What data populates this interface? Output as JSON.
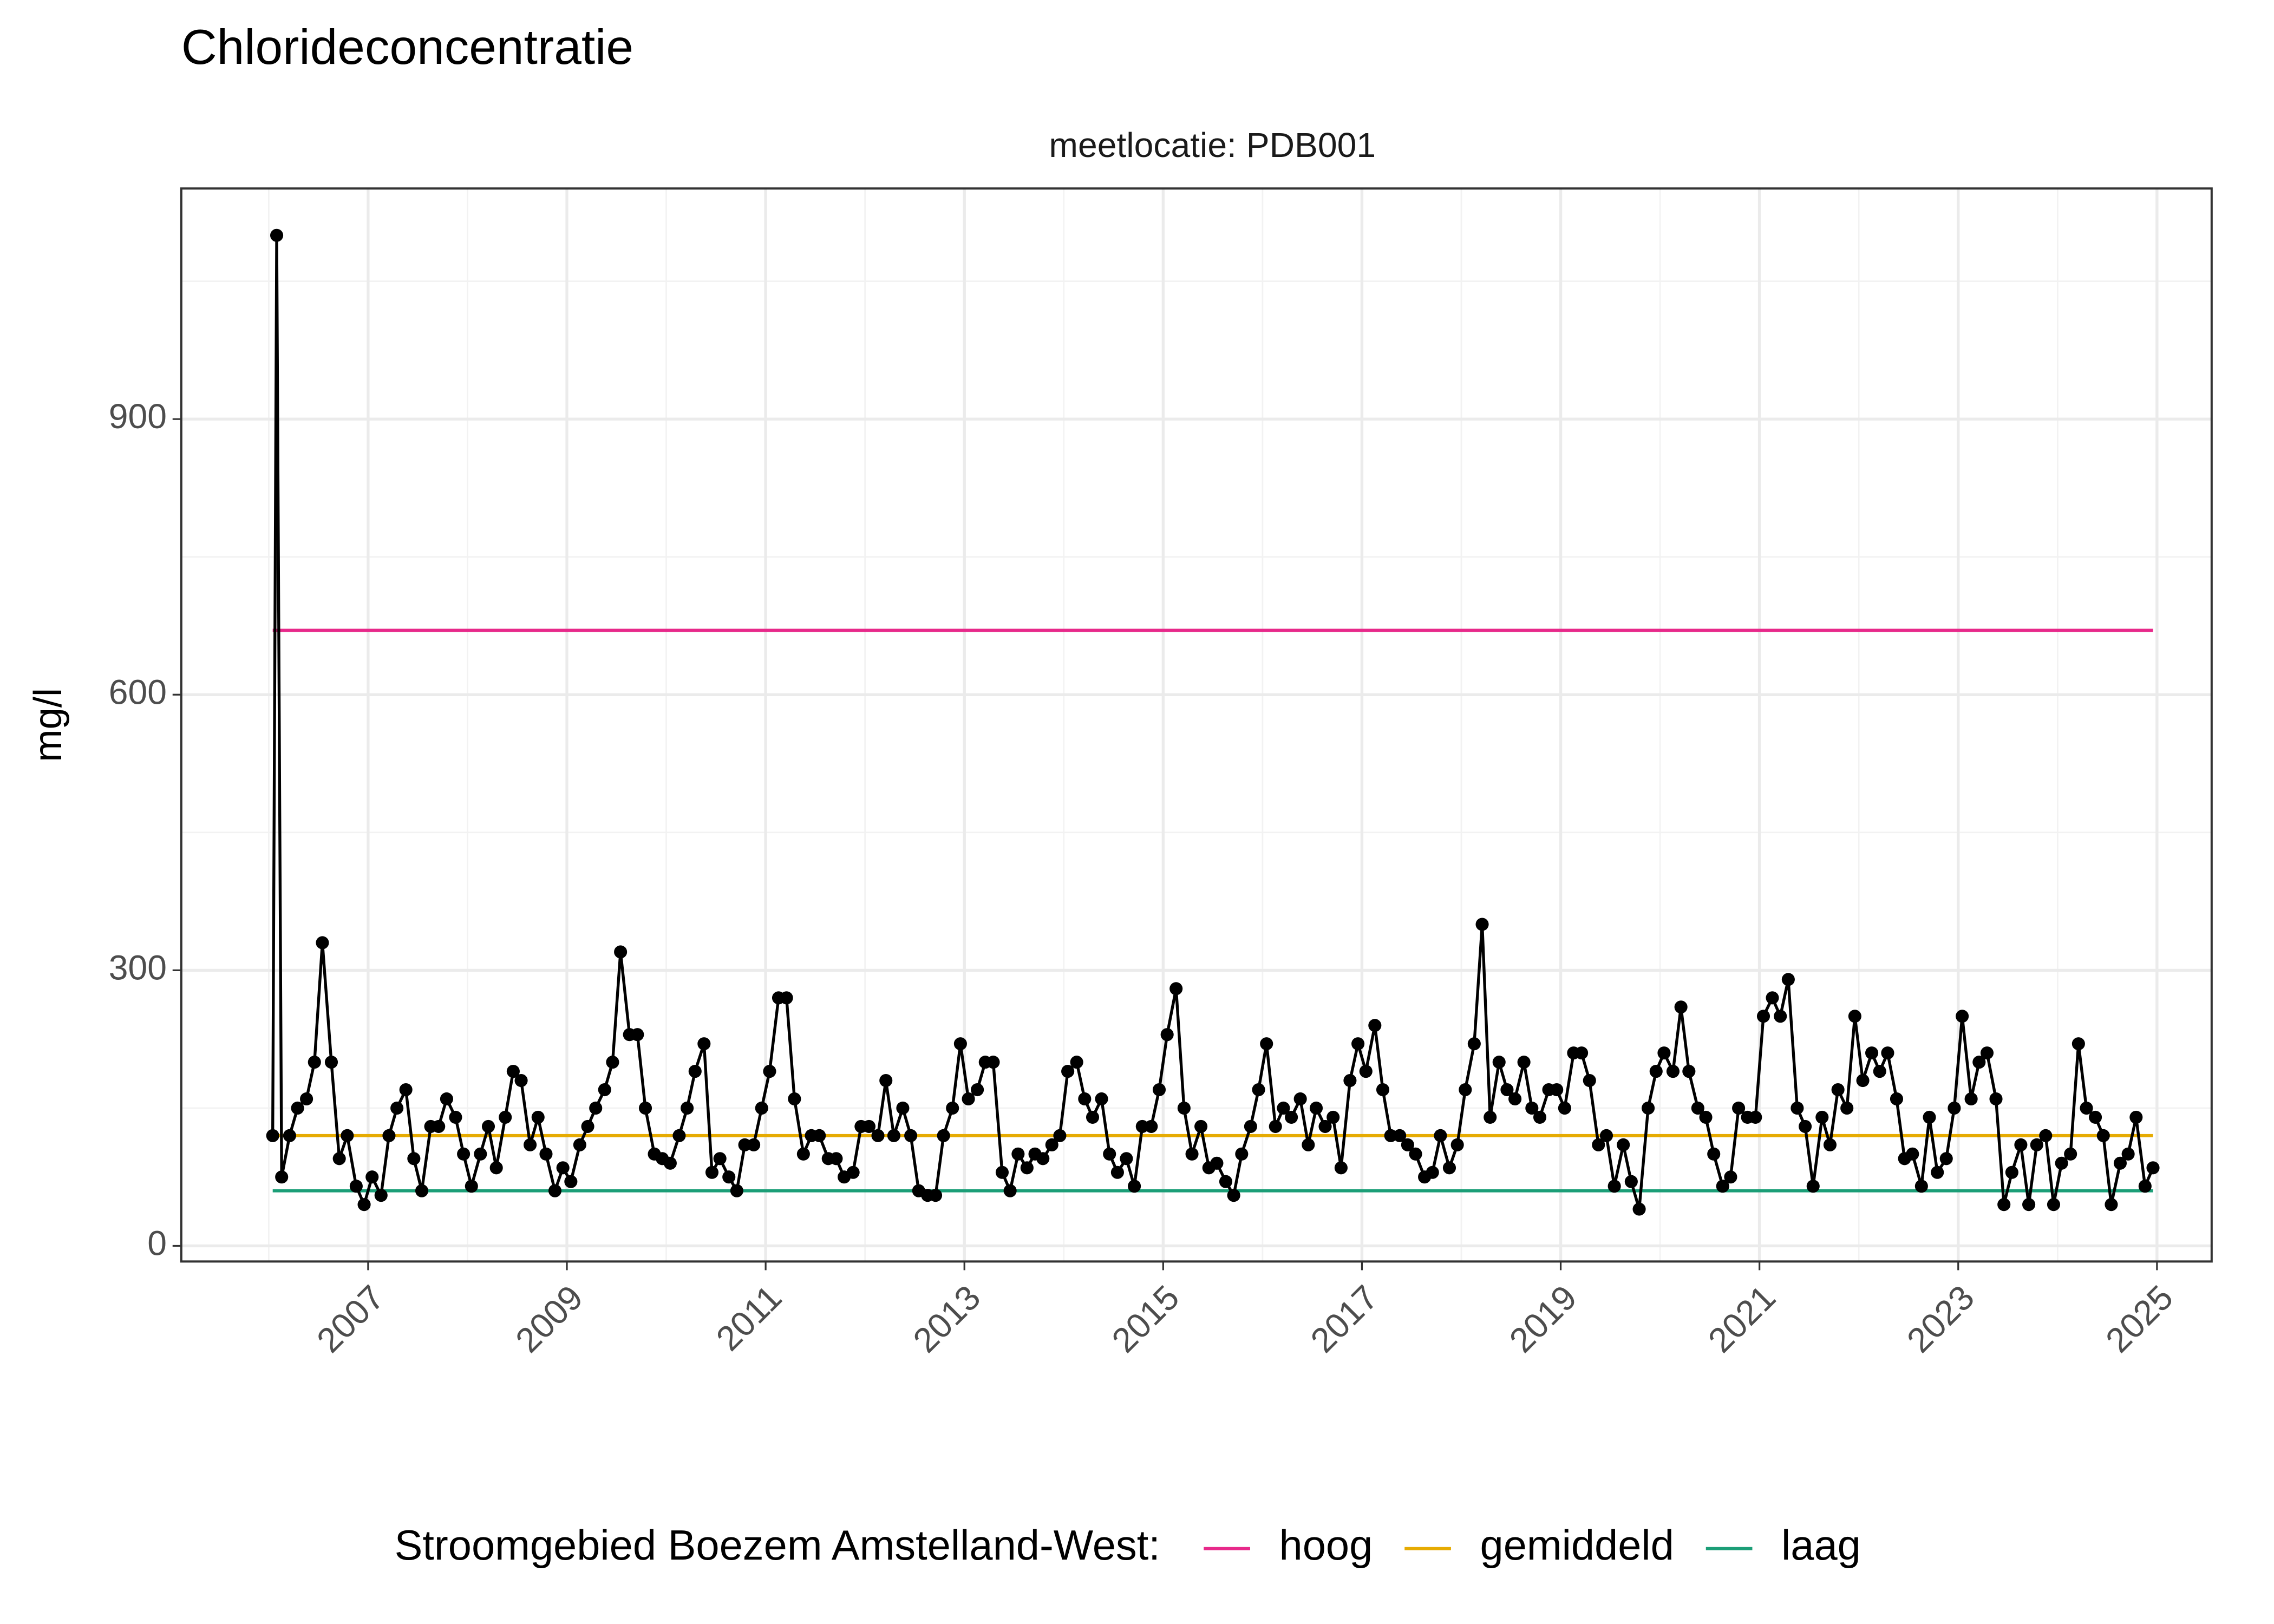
{
  "chart_data": {
    "type": "line",
    "title": "Chlorideconcentratie",
    "subtitle": "meetlocatie: PDB001",
    "y_label": "mg/l",
    "x": [
      2006.04,
      2006.08,
      2006.13,
      2006.21,
      2006.29,
      2006.38,
      2006.46,
      2006.54,
      2006.63,
      2006.71,
      2006.79,
      2006.88,
      2006.96,
      2007.04,
      2007.13,
      2007.21,
      2007.29,
      2007.38,
      2007.46,
      2007.54,
      2007.63,
      2007.71,
      2007.79,
      2007.88,
      2007.96,
      2008.04,
      2008.13,
      2008.21,
      2008.29,
      2008.38,
      2008.46,
      2008.54,
      2008.63,
      2008.71,
      2008.79,
      2008.88,
      2008.96,
      2009.04,
      2009.13,
      2009.21,
      2009.29,
      2009.38,
      2009.46,
      2009.54,
      2009.63,
      2009.71,
      2009.79,
      2009.88,
      2009.96,
      2010.04,
      2010.13,
      2010.21,
      2010.29,
      2010.38,
      2010.46,
      2010.54,
      2010.63,
      2010.71,
      2010.79,
      2010.88,
      2010.96,
      2011.04,
      2011.13,
      2011.21,
      2011.29,
      2011.38,
      2011.46,
      2011.54,
      2011.63,
      2011.71,
      2011.79,
      2011.88,
      2011.96,
      2012.04,
      2012.13,
      2012.21,
      2012.29,
      2012.38,
      2012.46,
      2012.54,
      2012.63,
      2012.71,
      2012.79,
      2012.88,
      2012.96,
      2013.04,
      2013.13,
      2013.21,
      2013.29,
      2013.38,
      2013.46,
      2013.54,
      2013.63,
      2013.71,
      2013.79,
      2013.88,
      2013.96,
      2014.04,
      2014.13,
      2014.21,
      2014.29,
      2014.38,
      2014.46,
      2014.54,
      2014.63,
      2014.71,
      2014.79,
      2014.88,
      2014.96,
      2015.04,
      2015.13,
      2015.21,
      2015.29,
      2015.38,
      2015.46,
      2015.54,
      2015.63,
      2015.71,
      2015.79,
      2015.88,
      2015.96,
      2016.04,
      2016.13,
      2016.21,
      2016.29,
      2016.38,
      2016.46,
      2016.54,
      2016.63,
      2016.71,
      2016.79,
      2016.88,
      2016.96,
      2017.04,
      2017.13,
      2017.21,
      2017.29,
      2017.38,
      2017.46,
      2017.54,
      2017.63,
      2017.71,
      2017.79,
      2017.88,
      2017.96,
      2018.04,
      2018.13,
      2018.21,
      2018.29,
      2018.38,
      2018.46,
      2018.54,
      2018.63,
      2018.71,
      2018.79,
      2018.88,
      2018.96,
      2019.04,
      2019.13,
      2019.21,
      2019.29,
      2019.38,
      2019.46,
      2019.54,
      2019.63,
      2019.71,
      2019.79,
      2019.88,
      2019.96,
      2020.04,
      2020.13,
      2020.21,
      2020.29,
      2020.38,
      2020.46,
      2020.54,
      2020.63,
      2020.71,
      2020.79,
      2020.88,
      2020.96,
      2021.04,
      2021.13,
      2021.21,
      2021.29,
      2021.38,
      2021.46,
      2021.54,
      2021.63,
      2021.71,
      2021.79,
      2021.88,
      2021.96,
      2022.04,
      2022.13,
      2022.21,
      2022.29,
      2022.38,
      2022.46,
      2022.54,
      2022.63,
      2022.71,
      2022.79,
      2022.88,
      2022.96,
      2023.04,
      2023.13,
      2023.21,
      2023.29,
      2023.38,
      2023.46,
      2023.54,
      2023.63,
      2023.71,
      2023.79,
      2023.88,
      2023.96,
      2024.04,
      2024.13,
      2024.21,
      2024.29,
      2024.38,
      2024.46,
      2024.54,
      2024.63,
      2024.71,
      2024.79,
      2024.88,
      2024.96
    ],
    "values": [
      120,
      1100,
      75,
      120,
      150,
      160,
      200,
      330,
      200,
      95,
      120,
      65,
      45,
      75,
      55,
      120,
      150,
      170,
      95,
      60,
      130,
      130,
      160,
      140,
      100,
      65,
      100,
      130,
      85,
      140,
      190,
      180,
      110,
      140,
      100,
      60,
      85,
      70,
      110,
      130,
      150,
      170,
      200,
      320,
      230,
      230,
      150,
      100,
      95,
      90,
      120,
      150,
      190,
      220,
      80,
      95,
      75,
      60,
      110,
      110,
      150,
      190,
      270,
      270,
      160,
      100,
      120,
      120,
      95,
      95,
      75,
      80,
      130,
      130,
      120,
      180,
      120,
      150,
      120,
      60,
      55,
      55,
      120,
      150,
      220,
      160,
      170,
      200,
      200,
      80,
      60,
      100,
      85,
      100,
      95,
      110,
      120,
      190,
      200,
      160,
      140,
      160,
      100,
      80,
      95,
      65,
      130,
      130,
      170,
      230,
      280,
      150,
      100,
      130,
      85,
      90,
      70,
      55,
      100,
      130,
      170,
      220,
      130,
      150,
      140,
      160,
      110,
      150,
      130,
      140,
      85,
      180,
      220,
      190,
      240,
      170,
      120,
      120,
      110,
      100,
      75,
      80,
      120,
      85,
      110,
      170,
      220,
      350,
      140,
      200,
      170,
      160,
      200,
      150,
      140,
      170,
      170,
      150,
      210,
      210,
      180,
      110,
      120,
      65,
      110,
      70,
      40,
      150,
      190,
      210,
      190,
      260,
      190,
      150,
      140,
      100,
      65,
      75,
      150,
      140,
      140,
      250,
      270,
      250,
      290,
      150,
      130,
      65,
      140,
      110,
      170,
      150,
      250,
      180,
      210,
      190,
      210,
      160,
      95,
      100,
      65,
      140,
      80,
      95,
      150,
      250,
      160,
      200,
      210,
      160,
      45,
      80,
      110,
      45,
      110,
      120,
      45,
      90,
      100,
      220,
      150,
      140,
      120,
      45,
      90,
      100,
      140,
      65,
      85
    ],
    "color": "#000000",
    "reference_lines": [
      {
        "name": "hoog",
        "color": "#e7298a",
        "value": 670
      },
      {
        "name": "gemiddeld",
        "color": "#e6ab02",
        "value": 120
      },
      {
        "name": "laag",
        "color": "#1b9e77",
        "value": 60
      }
    ],
    "legend_title": "Stroomgebied Boezem Amstelland-West:",
    "xlim": [
      2005.12,
      2025.55
    ],
    "xticks": [
      2007,
      2009,
      2011,
      2013,
      2015,
      2017,
      2019,
      2021,
      2023,
      2025
    ],
    "ylim": [
      -17,
      1151
    ],
    "yticks": [
      0,
      300,
      600,
      900
    ],
    "grid": true,
    "legend_position": "bottom"
  }
}
